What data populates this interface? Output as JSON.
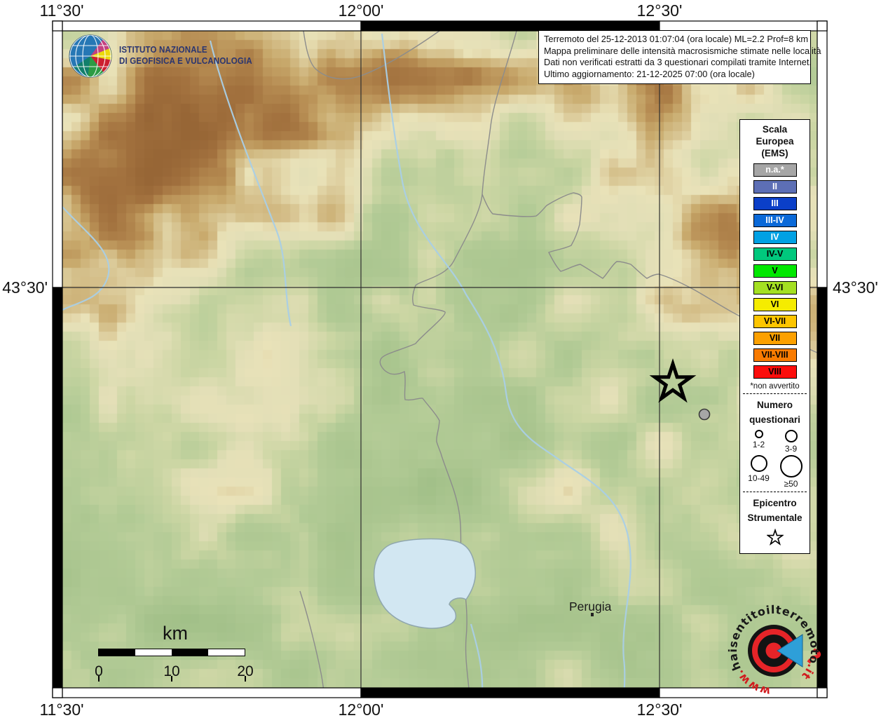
{
  "colors": {
    "frame_black": "#000000",
    "water_line": "#a9cfe6",
    "lake_fill": "#d2e7f2",
    "boundary": "#8c8c8c",
    "accent_red": "#e62428"
  },
  "header": {
    "ingv": {
      "name_line1": "ISTITUTO NAZIONALE",
      "name_line2": "DI GEOFISICA E VULCANOLOGIA"
    }
  },
  "info_box": {
    "line1": "Terremoto del 25-12-2013 01:07:04 (ora locale) ML=2.2 Prof=8 km",
    "line2": "Mappa preliminare delle intensità macrosismiche stimate nelle località",
    "line3": "Dati non verificati estratti da 3 questionari compilati tramite Internet.",
    "line4": "Ultimo aggiornamento: 21-12-2025 07:00 (ora locale)"
  },
  "map": {
    "coordinates": {
      "top": [
        "11°30'",
        "12°00'",
        "12°30'"
      ],
      "bottom": [
        "11°30'",
        "12°00'",
        "12°30'"
      ],
      "left": "43°30'",
      "right": "43°30'"
    },
    "place_labels": [
      "Perugia"
    ],
    "markers": {
      "epicenter": {
        "symbol": "star",
        "description": "Epicentro Strumentale"
      },
      "localities": [
        {
          "intensity": "n.a.",
          "color": "#a6a6a6"
        }
      ]
    }
  },
  "legend": {
    "title": [
      "Scala",
      "Europea",
      "(EMS)"
    ],
    "classes": [
      {
        "label": "n.a.*",
        "color": "#a6a6a6",
        "text_color": "#ffffff"
      },
      {
        "label": "II",
        "color": "#5d6fb5",
        "text_color": "#ffffff"
      },
      {
        "label": "III",
        "color": "#0b3fc8",
        "text_color": "#ffffff"
      },
      {
        "label": "III-IV",
        "color": "#0a69d8",
        "text_color": "#ffffff"
      },
      {
        "label": "IV",
        "color": "#00a1e4",
        "text_color": "#ffffff"
      },
      {
        "label": "IV-V",
        "color": "#00c87d",
        "text_color": "#000000"
      },
      {
        "label": "V",
        "color": "#00e800",
        "text_color": "#000000"
      },
      {
        "label": "V-VI",
        "color": "#a4e022",
        "text_color": "#000000"
      },
      {
        "label": "VI",
        "color": "#f5ec00",
        "text_color": "#000000"
      },
      {
        "label": "VI-VII",
        "color": "#fdc500",
        "text_color": "#000000"
      },
      {
        "label": "VII",
        "color": "#fca000",
        "text_color": "#000000"
      },
      {
        "label": "VII-VIII",
        "color": "#f97b00",
        "text_color": "#000000"
      },
      {
        "label": "VIII",
        "color": "#fb0d0c",
        "text_color": "#000000"
      }
    ],
    "footnote": "*non avvertito",
    "questionnaires": {
      "title": [
        "Numero",
        "questionari"
      ],
      "sizes": [
        {
          "label": "1-2",
          "r": 5
        },
        {
          "label": "3-9",
          "r": 8
        },
        {
          "label": "10-49",
          "r": 11
        },
        {
          "label": "≥50",
          "r": 15
        }
      ]
    },
    "epicenter": {
      "title": [
        "Epicentro",
        "Strumentale"
      ]
    }
  },
  "scale_bar": {
    "unit": "km",
    "ticks": [
      "0",
      "10",
      "20"
    ]
  },
  "watermark": {
    "prefix": "www.",
    "black": "haisentitoil",
    "mid": "terremoto",
    "suffix": ".it",
    "question": "?"
  }
}
